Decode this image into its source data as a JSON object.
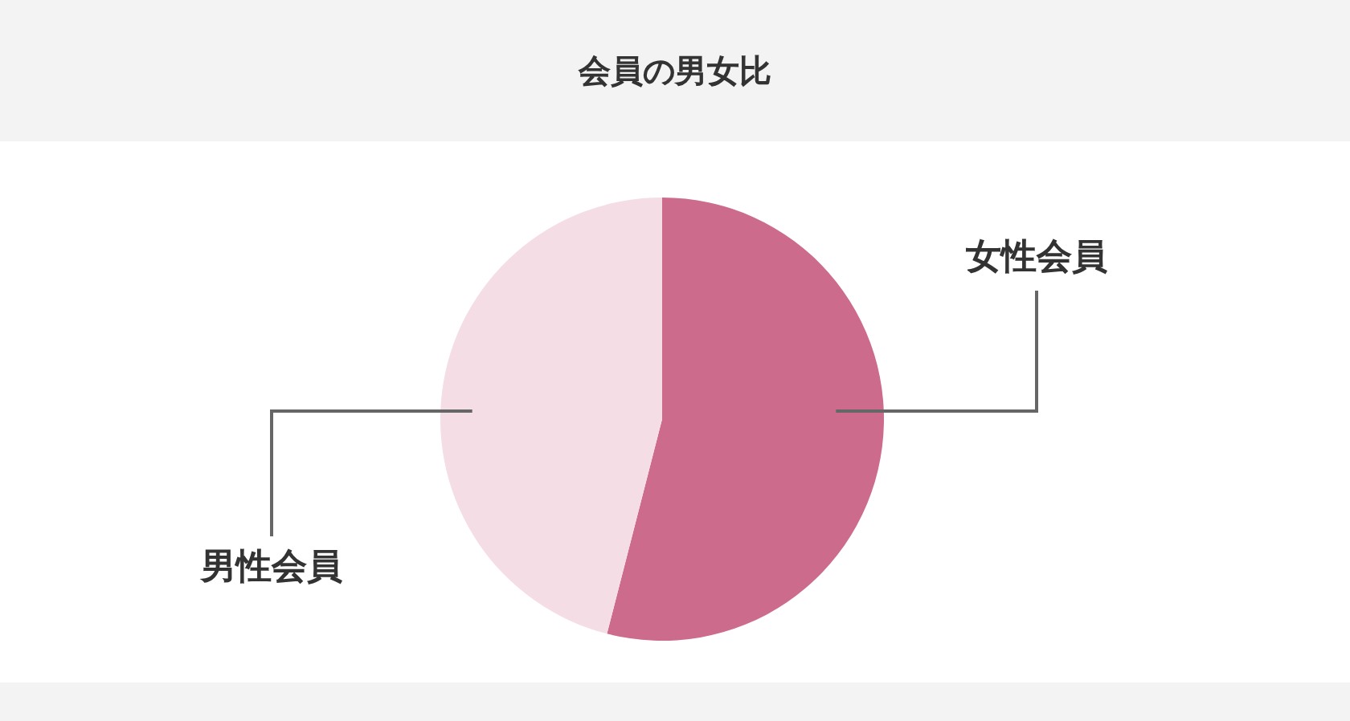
{
  "chart_data": {
    "type": "pie",
    "title": "会員の男女比",
    "categories": [
      "女性会員",
      "男性会員"
    ],
    "values": [
      54,
      46
    ],
    "colors": [
      "#cc6b8b",
      "#f5dde5"
    ]
  }
}
